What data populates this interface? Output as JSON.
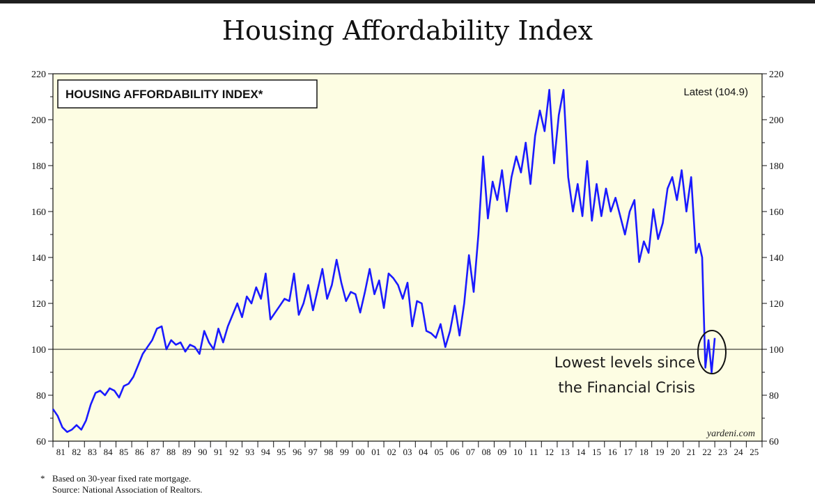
{
  "title": "Housing Affordability Index",
  "footnote": {
    "marker": "*",
    "note": "Based on 30-year fixed rate mortgage.",
    "source": "Source: National Association of Realtors."
  },
  "chart_data": {
    "type": "line",
    "title": "HOUSING AFFORDABILITY INDEX*",
    "latest_label": "Latest (104.9)",
    "annotation": [
      "Lowest levels since",
      "the Financial Crisis"
    ],
    "source_label": "yardeni.com",
    "ylim": [
      60,
      220
    ],
    "y_ticks": [
      60,
      80,
      100,
      120,
      140,
      160,
      180,
      200,
      220
    ],
    "x_range": [
      1981,
      2026
    ],
    "x_tick_labels": [
      "81",
      "82",
      "83",
      "84",
      "85",
      "86",
      "87",
      "88",
      "89",
      "90",
      "91",
      "92",
      "93",
      "94",
      "95",
      "96",
      "97",
      "98",
      "99",
      "00",
      "01",
      "02",
      "03",
      "04",
      "05",
      "06",
      "07",
      "08",
      "09",
      "10",
      "11",
      "12",
      "13",
      "14",
      "15",
      "16",
      "17",
      "18",
      "19",
      "20",
      "21",
      "22",
      "23",
      "24",
      "25"
    ],
    "reference_line": 100,
    "grid": false,
    "colors": {
      "line": "#1a1aff",
      "plot_bg": "#fdfde3",
      "axis": "#111111"
    },
    "series": [
      {
        "x": [
          1981.0,
          1981.3,
          1981.6,
          1981.9,
          1982.2,
          1982.5,
          1982.8,
          1983.1,
          1983.4,
          1983.7,
          1984.0,
          1984.3,
          1984.6,
          1984.9,
          1985.2,
          1985.5,
          1985.8,
          1986.1,
          1986.4,
          1986.7,
          1987.0,
          1987.3,
          1987.6,
          1987.9,
          1988.2,
          1988.5,
          1988.8,
          1989.1,
          1989.4,
          1989.7,
          1990.0,
          1990.3,
          1990.6,
          1990.9,
          1991.2,
          1991.5,
          1991.8,
          1992.1,
          1992.4,
          1992.7,
          1993.0,
          1993.3,
          1993.6,
          1993.9,
          1994.2,
          1994.5,
          1994.8,
          1995.1,
          1995.4,
          1995.7,
          1996.0,
          1996.3,
          1996.6,
          1996.9,
          1997.2,
          1997.5,
          1997.8,
          1998.1,
          1998.4,
          1998.7,
          1999.0,
          1999.3,
          1999.6,
          1999.9,
          2000.2,
          2000.5,
          2000.8,
          2001.1,
          2001.4,
          2001.7,
          2002.0,
          2002.3,
          2002.6,
          2002.9,
          2003.2,
          2003.5,
          2003.8,
          2004.1,
          2004.4,
          2004.7,
          2005.0,
          2005.3,
          2005.6,
          2005.9,
          2006.2,
          2006.5,
          2006.8,
          2007.1,
          2007.4,
          2007.7,
          2008.0,
          2008.3,
          2008.6,
          2008.9,
          2009.2,
          2009.5,
          2009.8,
          2010.1,
          2010.4,
          2010.7,
          2011.0,
          2011.3,
          2011.6,
          2011.9,
          2012.2,
          2012.5,
          2012.8,
          2013.1,
          2013.4,
          2013.7,
          2014.0,
          2014.3,
          2014.6,
          2014.9,
          2015.2,
          2015.5,
          2015.8,
          2016.1,
          2016.4,
          2016.7,
          2017.0,
          2017.3,
          2017.6,
          2017.9,
          2018.2,
          2018.5,
          2018.8,
          2019.1,
          2019.4,
          2019.7,
          2020.0,
          2020.3,
          2020.6,
          2020.9,
          2021.2,
          2021.5,
          2021.8,
          2022.0,
          2022.2,
          2022.4,
          2022.6,
          2022.8,
          2023.0
        ],
        "values": [
          74,
          71,
          66,
          64,
          65,
          67,
          65,
          69,
          76,
          81,
          82,
          80,
          83,
          82,
          79,
          84,
          85,
          88,
          93,
          98,
          101,
          104,
          109,
          110,
          100,
          104,
          102,
          103,
          99,
          102,
          101,
          98,
          108,
          103,
          100,
          109,
          103,
          110,
          115,
          120,
          114,
          123,
          120,
          127,
          122,
          133,
          113,
          116,
          119,
          122,
          121,
          133,
          115,
          120,
          128,
          117,
          126,
          135,
          122,
          128,
          139,
          129,
          121,
          125,
          124,
          116,
          125,
          135,
          124,
          130,
          118,
          133,
          131,
          128,
          122,
          129,
          110,
          121,
          120,
          108,
          107,
          105,
          111,
          101,
          108,
          119,
          106,
          120,
          141,
          125,
          150,
          184,
          157,
          173,
          165,
          178,
          160,
          175,
          184,
          177,
          190,
          172,
          193,
          204,
          195,
          213,
          181,
          202,
          213,
          175,
          160,
          172,
          158,
          182,
          156,
          172,
          158,
          170,
          160,
          166,
          158,
          150,
          160,
          165,
          138,
          147,
          142,
          161,
          148,
          155,
          170,
          175,
          165,
          178,
          160,
          175,
          142,
          146,
          140,
          92,
          104,
          90,
          104.9
        ]
      }
    ]
  }
}
